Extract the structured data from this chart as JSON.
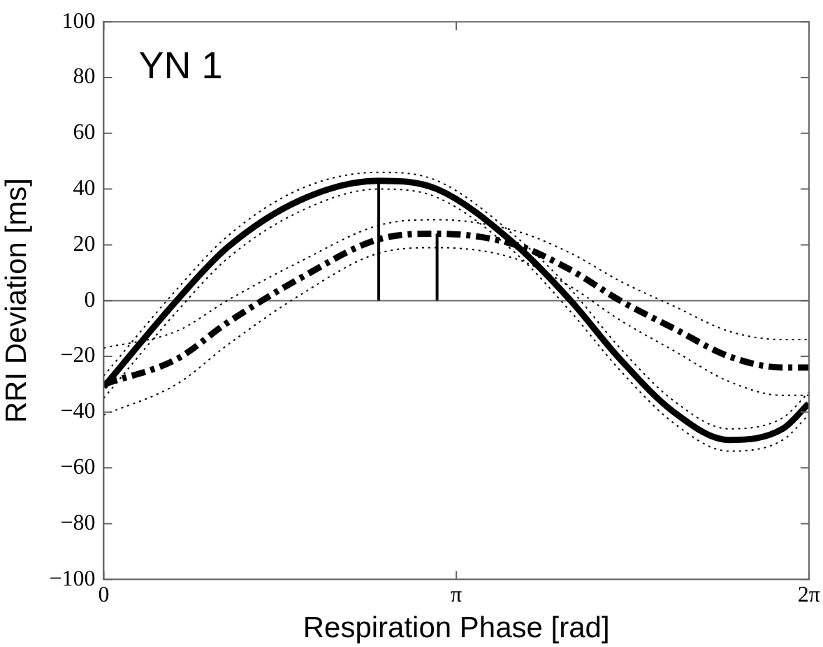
{
  "chart_data": {
    "type": "line",
    "xlabel": "Respiration Phase [rad]",
    "ylabel": "RRI Deviation [ms]",
    "annotations": [
      "YN 1"
    ],
    "xlim": [
      0,
      6.28319
    ],
    "xticks": [
      {
        "value": 0,
        "label": "0"
      },
      {
        "value": 3.14159,
        "label": "π"
      },
      {
        "value": 6.28319,
        "label": "2π"
      }
    ],
    "ylim": [
      -100,
      100
    ],
    "yticks": [
      -100,
      -80,
      -60,
      -40,
      -20,
      0,
      20,
      40,
      60,
      80,
      100
    ],
    "grid": false,
    "legend": false,
    "marker": "none",
    "x": [
      0,
      0.65,
      1.1,
      1.75,
      2.45,
      2.97,
      3.67,
      4.16,
      4.6,
      5.08,
      5.57,
      6.05,
      6.28
    ],
    "series": [
      {
        "color": "#000000",
        "line_style": "solid",
        "values": [
          -31,
          0,
          19,
          36,
          43,
          40,
          20,
          0,
          -21,
          -40,
          -50,
          -46,
          -37
        ]
      },
      {
        "color": "#000000",
        "line_style": "dotted",
        "values": [
          -35,
          -4,
          15,
          32,
          40,
          37,
          17,
          -4,
          -25,
          -44,
          -54,
          -50,
          -41
        ]
      },
      {
        "color": "#000000",
        "line_style": "dotted",
        "values": [
          -27,
          4,
          23,
          40,
          46,
          43,
          23,
          4,
          -17,
          -36,
          -46,
          -42,
          -33
        ]
      },
      {
        "color": "#000000",
        "line_style": "dashed",
        "values": [
          -30,
          -21,
          -8,
          8,
          22,
          24,
          20,
          11,
          0,
          -10,
          -20,
          -24,
          -24
        ]
      },
      {
        "color": "#000000",
        "line_style": "dotted",
        "values": [
          -41,
          -30,
          -16,
          2,
          17,
          19,
          15,
          5,
          -7,
          -18,
          -29,
          -34,
          -34
        ]
      },
      {
        "color": "#000000",
        "line_style": "dotted",
        "values": [
          -17,
          -11,
          0,
          14,
          27,
          29,
          25,
          17,
          7,
          -2,
          -11,
          -14,
          -14
        ]
      }
    ],
    "ref_lines": [
      {
        "axis": "y",
        "value": 0,
        "color": "#808080"
      },
      {
        "axis": "x",
        "value": 2.45,
        "color": "#000000"
      },
      {
        "axis": "x",
        "value": 2.97,
        "color": "#000000"
      }
    ]
  }
}
